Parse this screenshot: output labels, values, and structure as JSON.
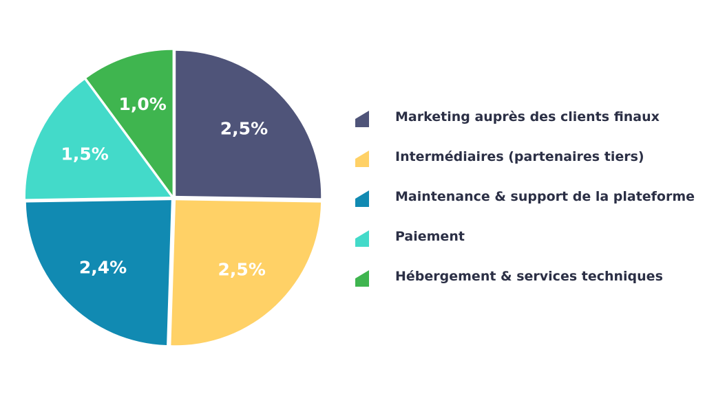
{
  "chart_data": {
    "type": "pie",
    "slices": [
      {
        "label": "Marketing auprès des clients finaux",
        "value": 2.5,
        "display": "2,5%",
        "color": "#4f5479"
      },
      {
        "label": "Intermédiaires (partenaires tiers)",
        "value": 2.5,
        "display": "2,5%",
        "color": "#ffd166"
      },
      {
        "label": "Maintenance & support de la plateforme",
        "value": 2.4,
        "display": "2,4%",
        "color": "#118ab2"
      },
      {
        "label": "Paiement",
        "value": 1.5,
        "display": "1,5%",
        "color": "#43dac9"
      },
      {
        "label": "Hébergement & services techniques",
        "value": 1.0,
        "display": "1,0%",
        "color": "#3fb54f"
      }
    ],
    "legend_position": "right",
    "start_angle": "top, clockwise"
  }
}
